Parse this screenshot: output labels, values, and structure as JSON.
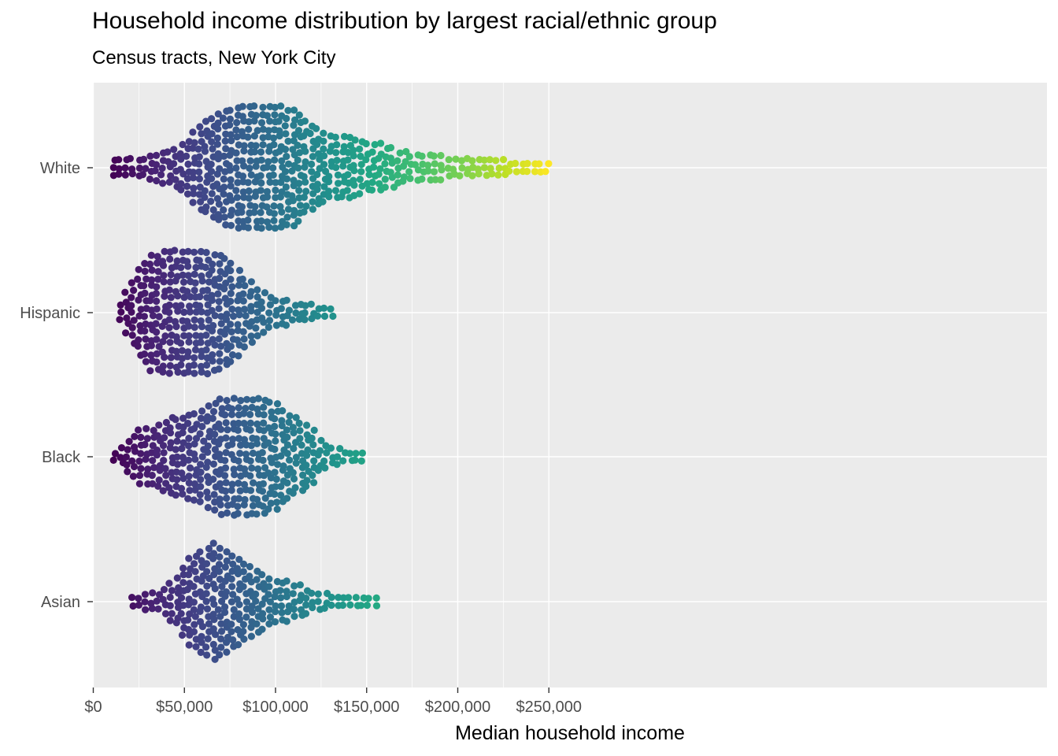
{
  "chart_data": {
    "type": "scatter",
    "subtype": "beeswarm",
    "title": "Household income distribution by largest racial/ethnic group",
    "subtitle": "Census tracts, New York City",
    "xlabel": "Median household income",
    "ylabel": "",
    "xlim": [
      0,
      262000
    ],
    "x_ticks": [
      {
        "value": 0,
        "label": "$0"
      },
      {
        "value": 50000,
        "label": "$50,000"
      },
      {
        "value": 100000,
        "label": "$100,000"
      },
      {
        "value": 150000,
        "label": "$150,000"
      },
      {
        "value": 200000,
        "label": "$200,000"
      },
      {
        "value": 250000,
        "label": "$250,000"
      }
    ],
    "categories": [
      "White",
      "Hispanic",
      "Black",
      "Asian"
    ],
    "color_scale": "viridis",
    "color_domain": [
      10000,
      250000
    ],
    "panel_background": "#ebebeb",
    "grid": true,
    "series": [
      {
        "name": "White",
        "summary": {
          "count": 1050,
          "min": 11000,
          "max": 250000,
          "peak": 90000
        },
        "density": [
          [
            11000,
            3
          ],
          [
            20000,
            3
          ],
          [
            30000,
            5
          ],
          [
            40000,
            7
          ],
          [
            50000,
            12
          ],
          [
            55000,
            17
          ],
          [
            60000,
            21
          ],
          [
            70000,
            26
          ],
          [
            80000,
            30
          ],
          [
            90000,
            30
          ],
          [
            100000,
            30
          ],
          [
            110000,
            27
          ],
          [
            115000,
            24
          ],
          [
            120000,
            20
          ],
          [
            130000,
            15
          ],
          [
            140000,
            14
          ],
          [
            150000,
            12
          ],
          [
            160000,
            10
          ],
          [
            170000,
            7
          ],
          [
            180000,
            5
          ],
          [
            190000,
            5
          ],
          [
            200000,
            3
          ],
          [
            215000,
            3
          ],
          [
            225000,
            3
          ],
          [
            235000,
            2
          ],
          [
            250000,
            2
          ]
        ]
      },
      {
        "name": "Hispanic",
        "summary": {
          "count": 1000,
          "min": 15000,
          "max": 133000,
          "peak": 40000
        },
        "density": [
          [
            15000,
            4
          ],
          [
            18000,
            9
          ],
          [
            22000,
            15
          ],
          [
            30000,
            26
          ],
          [
            40000,
            30
          ],
          [
            50000,
            30
          ],
          [
            60000,
            30
          ],
          [
            65000,
            29
          ],
          [
            75000,
            25
          ],
          [
            80000,
            20
          ],
          [
            85000,
            15
          ],
          [
            90000,
            11
          ],
          [
            95000,
            9
          ],
          [
            100000,
            6
          ],
          [
            110000,
            4
          ],
          [
            120000,
            3
          ],
          [
            125000,
            1
          ],
          [
            133000,
            1
          ]
        ]
      },
      {
        "name": "Black",
        "summary": {
          "count": 1050,
          "min": 12000,
          "max": 150000,
          "peak": 75000
        },
        "density": [
          [
            12000,
            2
          ],
          [
            18000,
            6
          ],
          [
            25000,
            12
          ],
          [
            30000,
            12
          ],
          [
            38000,
            17
          ],
          [
            45000,
            18
          ],
          [
            50000,
            19
          ],
          [
            60000,
            22
          ],
          [
            70000,
            27
          ],
          [
            75000,
            29
          ],
          [
            80000,
            27
          ],
          [
            90000,
            27
          ],
          [
            95000,
            27
          ],
          [
            100000,
            26
          ],
          [
            105000,
            22
          ],
          [
            110000,
            19
          ],
          [
            120000,
            14
          ],
          [
            125000,
            7
          ],
          [
            130000,
            5
          ],
          [
            135000,
            3
          ],
          [
            140000,
            2
          ],
          [
            150000,
            1
          ]
        ]
      },
      {
        "name": "Asian",
        "summary": {
          "count": 420,
          "min": 22000,
          "max": 158000,
          "peak": 65000
        },
        "density": [
          [
            22000,
            2
          ],
          [
            30000,
            3
          ],
          [
            35000,
            4
          ],
          [
            40000,
            6
          ],
          [
            48000,
            14
          ],
          [
            52000,
            20
          ],
          [
            58000,
            24
          ],
          [
            65000,
            28
          ],
          [
            70000,
            26
          ],
          [
            75000,
            23
          ],
          [
            80000,
            21
          ],
          [
            85000,
            17
          ],
          [
            90000,
            15
          ],
          [
            95000,
            13
          ],
          [
            100000,
            10
          ],
          [
            110000,
            8
          ],
          [
            115000,
            6
          ],
          [
            120000,
            4
          ],
          [
            128000,
            3
          ],
          [
            140000,
            2
          ],
          [
            150000,
            1
          ],
          [
            158000,
            1
          ]
        ]
      }
    ]
  }
}
